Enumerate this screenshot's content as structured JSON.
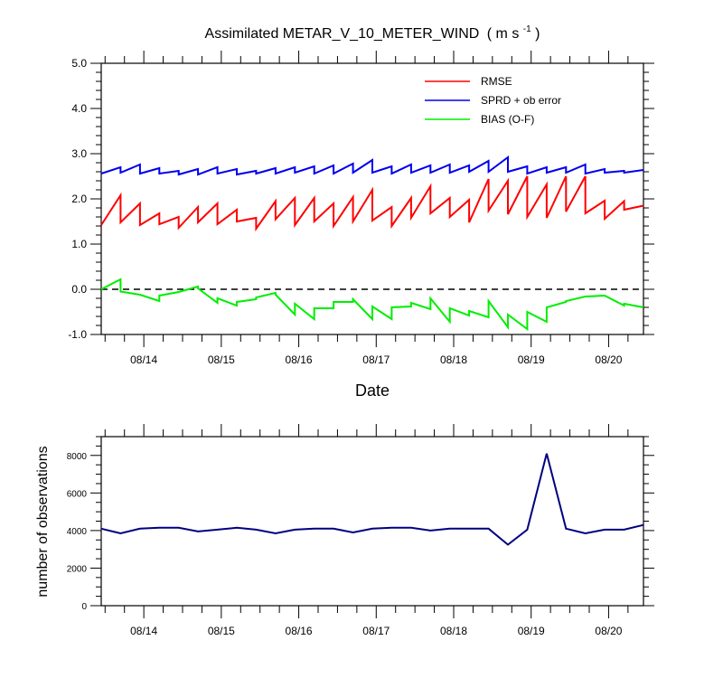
{
  "chart_data": [
    {
      "type": "line",
      "title": "Assimilated METAR_V_10_METER_WIND",
      "title_units": "( m s",
      "title_units_sup": "-1",
      "title_units_close": " )",
      "xlabel": "Date",
      "ylabel": "",
      "ylim": [
        -1.0,
        5.0
      ],
      "yticks": [
        -1.0,
        0.0,
        1.0,
        2.0,
        3.0,
        4.0,
        5.0
      ],
      "ytick_labels": [
        "-1.0",
        "0.0",
        "1.0",
        "2.0",
        "3.0",
        "4.0",
        "5.0"
      ],
      "xlim": [
        13.45,
        20.45
      ],
      "xticks": [
        14,
        15,
        16,
        17,
        18,
        19,
        20
      ],
      "xtick_labels": [
        "08/14",
        "08/15",
        "08/16",
        "08/17",
        "08/18",
        "08/19",
        "08/20"
      ],
      "reference_line": {
        "y": 0.0,
        "style": "dashed"
      },
      "legend": {
        "position": "top-right",
        "entries": [
          "RMSE",
          "SPRD + ob error",
          "BIAS (O-F)"
        ]
      },
      "series": [
        {
          "name": "RMSE",
          "color": "#ff0000",
          "x": [
            13.45,
            13.7,
            13.7,
            13.95,
            13.95,
            14.2,
            14.2,
            14.45,
            14.45,
            14.7,
            14.7,
            14.95,
            14.95,
            15.2,
            15.2,
            15.45,
            15.45,
            15.7,
            15.7,
            15.95,
            15.95,
            16.2,
            16.2,
            16.45,
            16.45,
            16.7,
            16.7,
            16.95,
            16.95,
            17.2,
            17.2,
            17.45,
            17.45,
            17.7,
            17.7,
            17.95,
            17.95,
            18.2,
            18.2,
            18.45,
            18.45,
            18.7,
            18.7,
            18.95,
            18.95,
            19.2,
            19.2,
            19.45,
            19.45,
            19.7,
            19.7,
            19.95,
            19.95,
            20.2,
            20.2,
            20.45
          ],
          "values": [
            1.42,
            2.08,
            1.48,
            1.9,
            1.42,
            1.68,
            1.44,
            1.6,
            1.36,
            1.82,
            1.48,
            1.9,
            1.44,
            1.76,
            1.5,
            1.58,
            1.34,
            1.95,
            1.55,
            2.02,
            1.42,
            2.02,
            1.5,
            1.9,
            1.4,
            2.04,
            1.5,
            2.2,
            1.52,
            1.82,
            1.4,
            2.02,
            1.58,
            2.28,
            1.68,
            2.02,
            1.6,
            1.98,
            1.48,
            2.44,
            1.74,
            2.4,
            1.66,
            2.5,
            1.6,
            2.32,
            1.58,
            2.5,
            1.72,
            2.5,
            1.68,
            1.96,
            1.56,
            1.95,
            1.76,
            1.85
          ]
        },
        {
          "name": "SPRD + ob error",
          "color": "#0000ee",
          "x": [
            13.45,
            13.7,
            13.7,
            13.95,
            13.95,
            14.2,
            14.2,
            14.45,
            14.45,
            14.7,
            14.7,
            14.95,
            14.95,
            15.2,
            15.2,
            15.45,
            15.45,
            15.7,
            15.7,
            15.95,
            15.95,
            16.2,
            16.2,
            16.45,
            16.45,
            16.7,
            16.7,
            16.95,
            16.95,
            17.2,
            17.2,
            17.45,
            17.45,
            17.7,
            17.7,
            17.95,
            17.95,
            18.2,
            18.2,
            18.45,
            18.45,
            18.7,
            18.7,
            18.95,
            18.95,
            19.2,
            19.2,
            19.45,
            19.45,
            19.7,
            19.7,
            19.95,
            19.95,
            20.2,
            20.2,
            20.45
          ],
          "values": [
            2.56,
            2.7,
            2.58,
            2.76,
            2.56,
            2.68,
            2.56,
            2.62,
            2.54,
            2.66,
            2.54,
            2.7,
            2.56,
            2.66,
            2.54,
            2.62,
            2.56,
            2.68,
            2.56,
            2.7,
            2.58,
            2.72,
            2.56,
            2.74,
            2.56,
            2.78,
            2.58,
            2.86,
            2.58,
            2.72,
            2.56,
            2.76,
            2.58,
            2.74,
            2.58,
            2.76,
            2.58,
            2.74,
            2.6,
            2.84,
            2.6,
            2.92,
            2.6,
            2.72,
            2.56,
            2.7,
            2.58,
            2.7,
            2.58,
            2.76,
            2.56,
            2.66,
            2.58,
            2.62,
            2.58,
            2.64
          ]
        },
        {
          "name": "BIAS (O-F)",
          "color": "#00ee00",
          "x": [
            13.45,
            13.7,
            13.7,
            13.95,
            13.95,
            14.2,
            14.2,
            14.45,
            14.45,
            14.7,
            14.7,
            14.95,
            14.95,
            15.2,
            15.2,
            15.45,
            15.45,
            15.7,
            15.7,
            15.95,
            15.95,
            16.2,
            16.2,
            16.45,
            16.45,
            16.7,
            16.7,
            16.95,
            16.95,
            17.2,
            17.2,
            17.45,
            17.45,
            17.7,
            17.7,
            17.95,
            17.95,
            18.2,
            18.2,
            18.45,
            18.45,
            18.7,
            18.7,
            18.95,
            18.95,
            19.2,
            19.2,
            19.45,
            19.45,
            19.7,
            19.7,
            19.95,
            19.95,
            20.2,
            20.2,
            20.45
          ],
          "values": [
            0.0,
            0.22,
            -0.05,
            -0.12,
            -0.12,
            -0.26,
            -0.14,
            -0.06,
            -0.06,
            0.06,
            0.02,
            -0.3,
            -0.2,
            -0.36,
            -0.28,
            -0.22,
            -0.18,
            -0.08,
            -0.12,
            -0.56,
            -0.32,
            -0.66,
            -0.42,
            -0.42,
            -0.28,
            -0.28,
            -0.22,
            -0.66,
            -0.38,
            -0.66,
            -0.4,
            -0.38,
            -0.3,
            -0.44,
            -0.2,
            -0.72,
            -0.42,
            -0.58,
            -0.48,
            -0.62,
            -0.26,
            -0.84,
            -0.56,
            -0.88,
            -0.5,
            -0.72,
            -0.4,
            -0.28,
            -0.26,
            -0.16,
            -0.16,
            -0.14,
            -0.14,
            -0.36,
            -0.32,
            -0.4
          ]
        }
      ]
    },
    {
      "type": "line",
      "title": "",
      "xlabel": "",
      "ylabel": "number of observations",
      "ylim": [
        0,
        9000
      ],
      "yticks": [
        0,
        2000,
        4000,
        6000,
        8000
      ],
      "ytick_labels": [
        "0",
        "2000",
        "4000",
        "6000",
        "8000"
      ],
      "xlim": [
        13.45,
        20.45
      ],
      "xticks": [
        14,
        15,
        16,
        17,
        18,
        19,
        20
      ],
      "xtick_labels": [
        "08/14",
        "08/15",
        "08/16",
        "08/17",
        "08/18",
        "08/19",
        "08/20"
      ],
      "series": [
        {
          "name": "observations",
          "color": "#000080",
          "x": [
            13.45,
            13.7,
            13.95,
            14.2,
            14.45,
            14.7,
            14.95,
            15.2,
            15.45,
            15.7,
            15.95,
            16.2,
            16.45,
            16.7,
            16.95,
            17.2,
            17.45,
            17.7,
            17.95,
            18.2,
            18.45,
            18.7,
            18.95,
            19.2,
            19.45,
            19.7,
            19.95,
            20.2,
            20.45
          ],
          "values": [
            4100,
            3850,
            4100,
            4150,
            4150,
            3950,
            4050,
            4150,
            4050,
            3850,
            4050,
            4100,
            4100,
            3900,
            4100,
            4150,
            4150,
            4000,
            4100,
            4100,
            4100,
            3250,
            4050,
            8100,
            4100,
            3850,
            4050,
            4050,
            4300
          ]
        }
      ]
    }
  ]
}
